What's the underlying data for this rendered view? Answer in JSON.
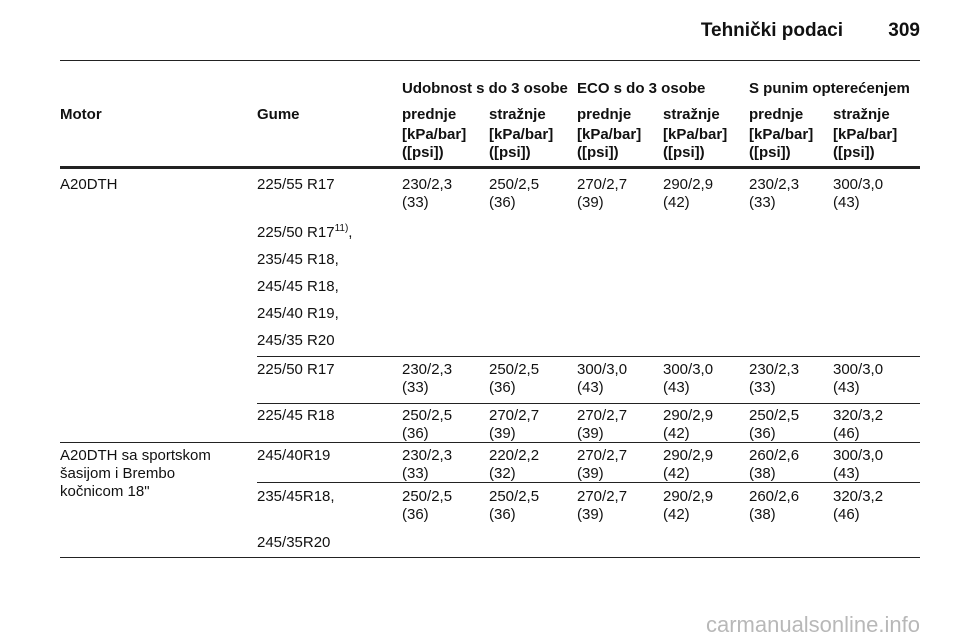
{
  "header": {
    "title": "Tehnički podaci",
    "page": "309"
  },
  "table": {
    "groups": [
      "Udobnost s do 3 osobe",
      "ECO s do 3 osobe",
      "S punim opterećenjem"
    ],
    "columns": [
      "Motor",
      "Gume",
      "prednje",
      "stražnje",
      "prednje",
      "stražnje",
      "prednje",
      "stražnje"
    ],
    "units": [
      "[kPa/bar]",
      "([psi])"
    ],
    "blocks": [
      {
        "motor": [
          "A20DTH"
        ],
        "entries": [
          {
            "tires": [
              "225/55 R17"
            ],
            "values": [
              [
                "230/2,3",
                "(33)"
              ],
              [
                "250/2,5",
                "(36)"
              ],
              [
                "270/2,7",
                "(39)"
              ],
              [
                "290/2,9",
                "(42)"
              ],
              [
                "230/2,3",
                "(33)"
              ],
              [
                "300/3,0",
                "(43)"
              ]
            ]
          },
          {
            "tires": [
              {
                "text": "225/50 R17",
                "note": "11)",
                "tail": ","
              },
              "235/45 R18,",
              "245/45 R18,",
              "245/40 R19,",
              "245/35 R20"
            ],
            "values": []
          },
          {
            "tires": [
              "225/50 R17"
            ],
            "values": [
              [
                "230/2,3",
                "(33)"
              ],
              [
                "250/2,5",
                "(36)"
              ],
              [
                "300/3,0",
                "(43)"
              ],
              [
                "300/3,0",
                "(43)"
              ],
              [
                "230/2,3",
                "(33)"
              ],
              [
                "300/3,0",
                "(43)"
              ]
            ]
          },
          {
            "tires": [
              "225/45 R18"
            ],
            "values": [
              [
                "250/2,5",
                "(36)"
              ],
              [
                "270/2,7",
                "(39)"
              ],
              [
                "270/2,7",
                "(39)"
              ],
              [
                "290/2,9",
                "(42)"
              ],
              [
                "250/2,5",
                "(36)"
              ],
              [
                "320/3,2",
                "(46)"
              ]
            ]
          }
        ]
      },
      {
        "motor": [
          "A20DTH sa sportskom",
          "šasijom i Brembo",
          "kočnicom 18\""
        ],
        "entries": [
          {
            "tires": [
              "245/40R19"
            ],
            "values": [
              [
                "230/2,3",
                "(33)"
              ],
              [
                "220/2,2",
                "(32)"
              ],
              [
                "270/2,7",
                "(39)"
              ],
              [
                "290/2,9",
                "(42)"
              ],
              [
                "260/2,6",
                "(38)"
              ],
              [
                "300/3,0",
                "(43)"
              ]
            ]
          },
          {
            "tires": [
              "235/45R18,",
              "245/35R20"
            ],
            "values": [
              [
                "250/2,5",
                "(36)"
              ],
              [
                "250/2,5",
                "(36)"
              ],
              [
                "270/2,7",
                "(39)"
              ],
              [
                "290/2,9",
                "(42)"
              ],
              [
                "260/2,6",
                "(38)"
              ],
              [
                "320/3,2",
                "(46)"
              ]
            ]
          }
        ]
      }
    ]
  },
  "watermark": "carmanualsonline.info"
}
